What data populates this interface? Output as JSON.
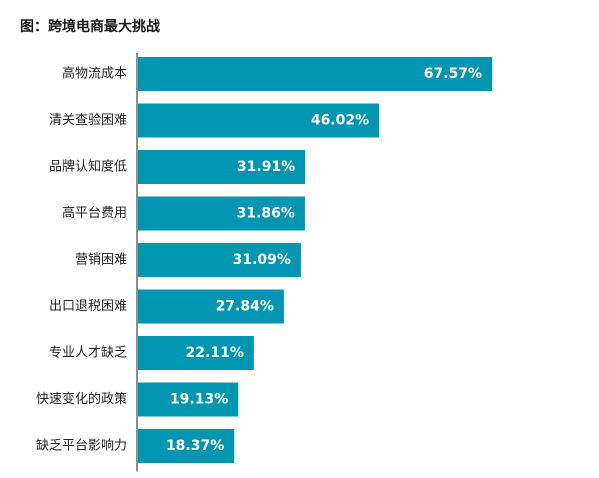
{
  "chart_data": {
    "type": "bar",
    "orientation": "horizontal",
    "title": "图：跨境电商最大挑战",
    "categories": [
      "高物流成本",
      "清关查验困难",
      "品牌认知度低",
      "高平台费用",
      "营销困难",
      "出口退税困难",
      "专业人才缺乏",
      "快速变化的政策",
      "缺乏平台影响力"
    ],
    "values": [
      67.57,
      46.02,
      31.91,
      31.86,
      31.09,
      27.84,
      22.11,
      19.13,
      18.37
    ],
    "value_labels": [
      "67.57%",
      "46.02%",
      "31.91%",
      "31.86%",
      "31.09%",
      "27.84%",
      "22.11%",
      "19.13%",
      "18.37%"
    ],
    "unit": "%",
    "xlim": [
      0,
      100
    ],
    "grid": false,
    "legend": "none",
    "bar_color": "#0096b1",
    "axis_color": "#444444"
  }
}
